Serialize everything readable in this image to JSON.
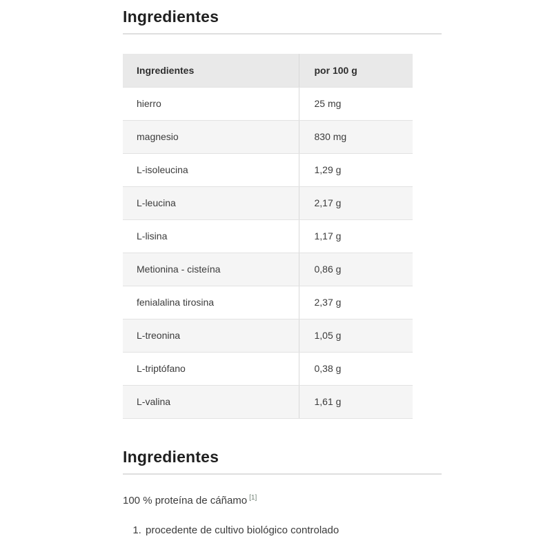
{
  "section_top": {
    "title": "Ingredientes"
  },
  "table": {
    "headers": [
      "Ingredientes",
      "por 100 g"
    ],
    "rows": [
      {
        "name": "hierro",
        "value": "25 mg"
      },
      {
        "name": "magnesio",
        "value": "830 mg"
      },
      {
        "name": "L-isoleucina",
        "value": "1,29 g"
      },
      {
        "name": "L-leucina",
        "value": "2,17 g"
      },
      {
        "name": "L-lisina",
        "value": "1,17 g"
      },
      {
        "name": "Metionina - cisteína",
        "value": "0,86 g"
      },
      {
        "name": "fenialalina tirosina",
        "value": "2,37 g"
      },
      {
        "name": "L-treonina",
        "value": "1,05 g"
      },
      {
        "name": "L-triptófano",
        "value": "0,38 g"
      },
      {
        "name": "L-valina",
        "value": "1,61 g"
      }
    ]
  },
  "section_bottom": {
    "title": "Ingredientes",
    "ingredient_text": "100 % proteína de cáñamo",
    "footnote_ref": "[1]",
    "footnotes": [
      "procedente de cultivo biológico controlado"
    ]
  },
  "colors": {
    "heading_text": "#1f1f1f",
    "body_text": "#3b3b3b",
    "table_header_bg": "#e9e9e9",
    "row_alt_bg": "#f5f5f5",
    "row_border": "#e2e2e2",
    "column_divider": "#d8d8d8",
    "rule": "#dedede",
    "footnote_ref": "#6f8073"
  }
}
